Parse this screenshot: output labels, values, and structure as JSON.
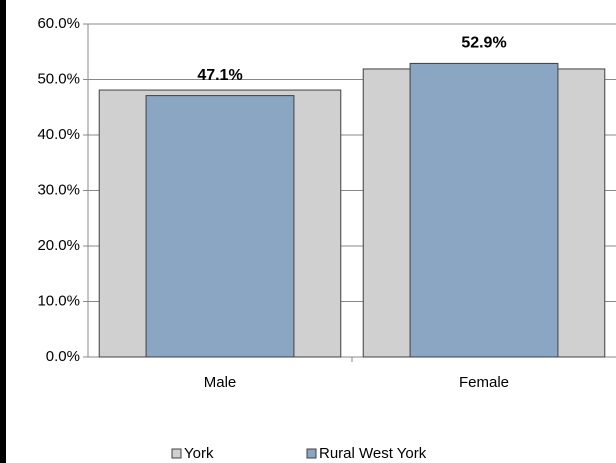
{
  "chart_data": {
    "type": "bar",
    "categories": [
      "Male",
      "Female"
    ],
    "series": [
      {
        "name": "York",
        "color": "#d0d0d0",
        "values": [
          48.1,
          51.9
        ]
      },
      {
        "name": "Rural West York",
        "color": "#8aa6c2",
        "values": [
          47.1,
          52.9
        ],
        "value_labels": [
          "47.1%",
          "52.9%"
        ]
      }
    ],
    "ylim": [
      0,
      60
    ],
    "yticks": [
      {
        "value": 0,
        "label": "0.0%"
      },
      {
        "value": 10,
        "label": "10.0%"
      },
      {
        "value": 20,
        "label": "20.0%"
      },
      {
        "value": 30,
        "label": "30.0%"
      },
      {
        "value": 40,
        "label": "40.0%"
      },
      {
        "value": 50,
        "label": "50.0%"
      },
      {
        "value": 60,
        "label": "60.0%"
      }
    ],
    "grid": true,
    "legend": "bottom"
  }
}
